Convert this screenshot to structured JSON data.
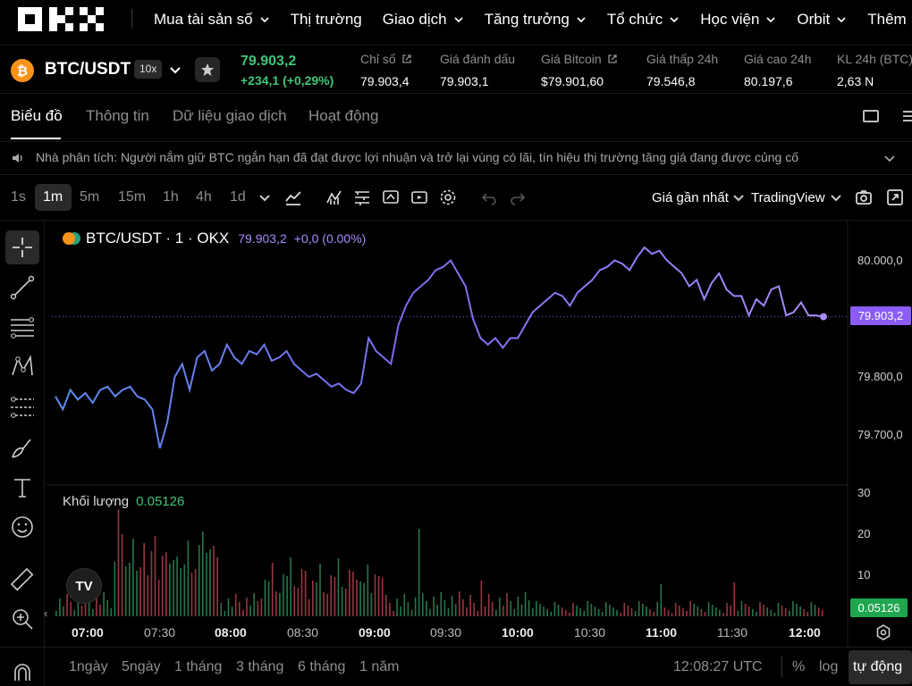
{
  "nav": {
    "logo": "OKX",
    "items": [
      {
        "label": "Mua tài sản số",
        "has_menu": true
      },
      {
        "label": "Thị trường",
        "has_menu": false
      },
      {
        "label": "Giao dịch",
        "has_menu": true
      },
      {
        "label": "Tăng trưởng",
        "has_menu": true
      },
      {
        "label": "Tổ chức",
        "has_menu": true
      },
      {
        "label": "Học viện",
        "has_menu": true
      },
      {
        "label": "Orbit",
        "has_menu": true
      },
      {
        "label": "Thêm",
        "has_menu": false
      }
    ]
  },
  "ticker": {
    "coin_icon": "bitcoin-icon",
    "pair": "BTC/USDT",
    "leverage": "10x",
    "last_price": "79.903,2",
    "change": "+234,1 (+0,29%)",
    "stats": [
      {
        "label": "Chỉ số",
        "value": "79.903,4",
        "external": true
      },
      {
        "label": "Giá đánh dấu",
        "value": "79.903,1",
        "external": false
      },
      {
        "label": "Giá Bitcoin",
        "value": "$79.901,60",
        "external": true
      },
      {
        "label": "Giá thấp 24h",
        "value": "79.546,8",
        "external": false
      },
      {
        "label": "Giá cao 24h",
        "value": "80.197,6",
        "external": false
      },
      {
        "label": "KL 24h (BTC)",
        "value": "2,63 N",
        "external": false
      }
    ],
    "up_color": "#3fc679"
  },
  "tabs": [
    "Biểu đồ",
    "Thông tin",
    "Dữ liệu giao dịch",
    "Hoạt động"
  ],
  "banner": {
    "text": "Nhà phân tích: Người nắm giữ BTC ngắn hạn đã đạt được lợi nhuận và trở lại vùng có lãi, tín hiệu thị trường tăng giá đang được củng cố"
  },
  "toolbar": {
    "timeframes": [
      "1s",
      "1m",
      "5m",
      "15m",
      "1h",
      "4h",
      "1d"
    ],
    "active_timeframe": "1m",
    "price_source": "Giá gần nhất",
    "chart_engine": "TradingView"
  },
  "chart": {
    "legend_symbol": "BTC/USDT · 1 · OKX",
    "legend_price": "79.903,2",
    "legend_change": "+0,0 (0.00%)",
    "volume_label": "Khối lượng",
    "volume_value": "0.05126",
    "current_price_tag": "79.903,2",
    "volume_tag": "0.05126",
    "line_color": "#a78bfa",
    "y_labels": [
      "80.000,0",
      "79.800,0",
      "79.700,0"
    ],
    "vol_y_labels": [
      "30",
      "20",
      "10"
    ],
    "x_labels": [
      "07:00",
      "07:30",
      "08:00",
      "08:30",
      "09:00",
      "09:30",
      "10:00",
      "10:30",
      "11:00",
      "11:30",
      "12:00"
    ]
  },
  "chart_data": {
    "type": "line",
    "ylim": [
      79650,
      80050
    ],
    "x_range": [
      "06:55",
      "12:08"
    ],
    "series": [
      {
        "values": [
          79780,
          79760,
          79790,
          79775,
          79785,
          79770,
          79790,
          79795,
          79780,
          79790,
          79795,
          79780,
          79775,
          79760,
          79700,
          79740,
          79810,
          79830,
          79790,
          79840,
          79850,
          79820,
          79830,
          79860,
          79840,
          79830,
          79850,
          79845,
          79860,
          79835,
          79840,
          79850,
          79830,
          79820,
          79810,
          79815,
          79805,
          79795,
          79800,
          79790,
          79785,
          79800,
          79870,
          79850,
          79840,
          79830,
          79890,
          79920,
          79940,
          79950,
          79960,
          79975,
          79980,
          79990,
          79970,
          79950,
          79900,
          79870,
          79860,
          79870,
          79855,
          79870,
          79870,
          79890,
          79910,
          79920,
          79930,
          79940,
          79935,
          79920,
          79940,
          79950,
          79960,
          79975,
          79980,
          79990,
          79985,
          79975,
          79995,
          80010,
          80000,
          80005,
          79990,
          79980,
          79970,
          79950,
          79960,
          79930,
          79955,
          79970,
          79945,
          79935,
          79935,
          79905,
          79930,
          79920,
          79945,
          79950,
          79905,
          79910,
          79925,
          79905,
          79905,
          79903
        ]
      }
    ]
  }
}
